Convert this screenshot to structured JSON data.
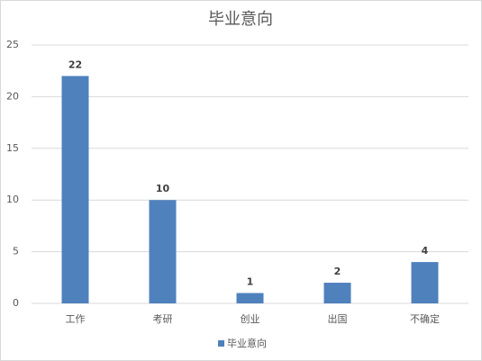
{
  "chart_data": {
    "type": "bar",
    "title": "毕业意向",
    "categories": [
      "工作",
      "考研",
      "创业",
      "出国",
      "不确定"
    ],
    "series": [
      {
        "name": "毕业意向",
        "color": "#4f81bd",
        "values": [
          22,
          10,
          1,
          2,
          4
        ]
      }
    ],
    "ylim": [
      0,
      25
    ],
    "yticks": [
      0,
      5,
      10,
      15,
      20,
      25
    ],
    "grid": true,
    "legend": "bottom",
    "data_labels": true
  }
}
